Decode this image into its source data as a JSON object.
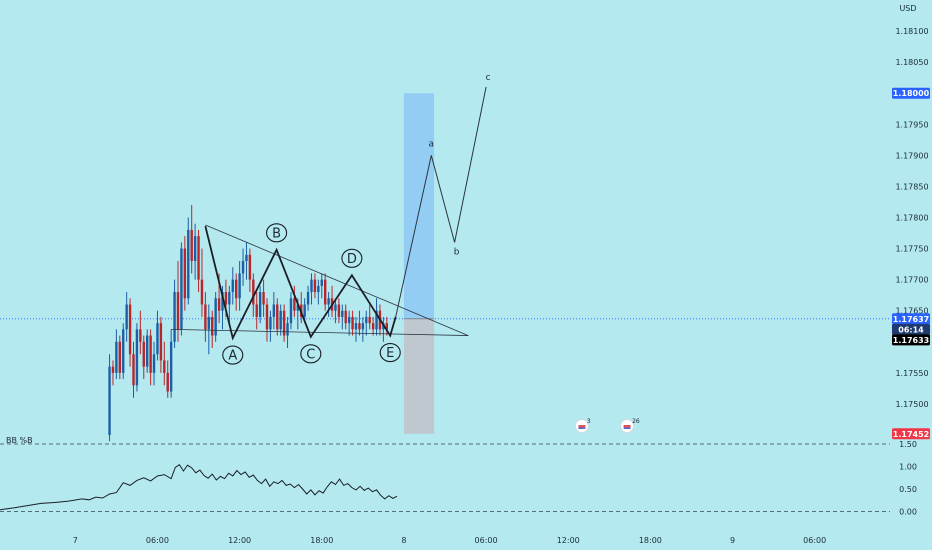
{
  "chart_data": [
    {
      "type": "candlestick",
      "currency": "USD",
      "y_ticks": [
        "1.18100",
        "1.18050",
        "1.18000",
        "1.17950",
        "1.17900",
        "1.17850",
        "1.17800",
        "1.17750",
        "1.17700",
        "1.17650",
        "1.17600",
        "1.17550",
        "1.17500"
      ],
      "y_tick_values": [
        1.181,
        1.1805,
        1.18,
        1.1795,
        1.179,
        1.1785,
        1.178,
        1.1775,
        1.177,
        1.1765,
        1.176,
        1.1755,
        1.175
      ],
      "ylim": [
        1.1745,
        1.1815
      ],
      "x_ticks": [
        "7",
        "06:00",
        "12:00",
        "18:00",
        "8",
        "06:00",
        "12:00",
        "18:00",
        "9",
        "06:00"
      ],
      "x_tick_hours": [
        0,
        6,
        12,
        18,
        24,
        30,
        36,
        42,
        48,
        54
      ],
      "xlim_hours": [
        -5.5,
        59.5
      ],
      "price_tags": [
        {
          "value": "1.18000",
          "price": 1.18,
          "color": "#2962ff",
          "text_color": "#ffffff"
        },
        {
          "value": "1.17637",
          "price": 1.17637,
          "color": "#2962ff",
          "text_color": "#ffffff"
        },
        {
          "value": "06:14",
          "price": 1.1762,
          "color": "#1e3a6e",
          "text_color": "#ffffff"
        },
        {
          "value": "1.17633",
          "price": 1.17603,
          "color": "#000000",
          "text_color": "#ffffff"
        },
        {
          "value": "1.17452",
          "price": 1.17452,
          "color": "#f23645",
          "text_color": "#ffffff"
        }
      ],
      "current_price": 1.17637,
      "candles_ohlc": [
        [
          2.5,
          1.1745,
          1.1758,
          1.1744,
          1.1756
        ],
        [
          2.75,
          1.1756,
          1.1757,
          1.1753,
          1.1755
        ],
        [
          3.0,
          1.1755,
          1.1762,
          1.1754,
          1.176
        ],
        [
          3.25,
          1.176,
          1.1761,
          1.1754,
          1.1755
        ],
        [
          3.5,
          1.1755,
          1.1763,
          1.1754,
          1.1762
        ],
        [
          3.75,
          1.1762,
          1.1768,
          1.176,
          1.1766
        ],
        [
          4.0,
          1.1766,
          1.1767,
          1.1756,
          1.1758
        ],
        [
          4.25,
          1.1758,
          1.176,
          1.1751,
          1.1753
        ],
        [
          4.5,
          1.1753,
          1.1763,
          1.1752,
          1.1762
        ],
        [
          4.75,
          1.1762,
          1.1765,
          1.1758,
          1.176
        ],
        [
          5.0,
          1.176,
          1.1761,
          1.1754,
          1.1756
        ],
        [
          5.25,
          1.1756,
          1.1762,
          1.1755,
          1.1761
        ],
        [
          5.5,
          1.1761,
          1.1762,
          1.1753,
          1.1755
        ],
        [
          5.75,
          1.1755,
          1.176,
          1.1753,
          1.1758
        ],
        [
          6.0,
          1.1758,
          1.1765,
          1.1757,
          1.1763
        ],
        [
          6.25,
          1.1763,
          1.1764,
          1.1755,
          1.1757
        ],
        [
          6.5,
          1.1757,
          1.176,
          1.1753,
          1.1755
        ],
        [
          6.75,
          1.1755,
          1.1757,
          1.1751,
          1.1752
        ],
        [
          7.0,
          1.1752,
          1.1762,
          1.1751,
          1.176
        ],
        [
          7.25,
          1.176,
          1.177,
          1.1759,
          1.1768
        ],
        [
          7.5,
          1.1768,
          1.1773,
          1.176,
          1.1762
        ],
        [
          7.75,
          1.1762,
          1.1776,
          1.1761,
          1.1775
        ],
        [
          8.0,
          1.1775,
          1.1777,
          1.1765,
          1.1767
        ],
        [
          8.25,
          1.1767,
          1.178,
          1.1766,
          1.1778
        ],
        [
          8.5,
          1.1778,
          1.1782,
          1.1771,
          1.1773
        ],
        [
          8.75,
          1.1773,
          1.1779,
          1.177,
          1.1777
        ],
        [
          9.0,
          1.1777,
          1.1778,
          1.1768,
          1.177
        ],
        [
          9.25,
          1.177,
          1.1775,
          1.1764,
          1.1766
        ],
        [
          9.5,
          1.1766,
          1.1768,
          1.176,
          1.1762
        ],
        [
          9.75,
          1.1762,
          1.1766,
          1.1758,
          1.1764
        ],
        [
          10.0,
          1.1764,
          1.1765,
          1.1759,
          1.1761
        ],
        [
          10.25,
          1.1761,
          1.1768,
          1.176,
          1.1767
        ],
        [
          10.5,
          1.1767,
          1.1771,
          1.1763,
          1.1765
        ],
        [
          10.75,
          1.1765,
          1.1769,
          1.1762,
          1.1768
        ],
        [
          11.0,
          1.1768,
          1.177,
          1.1764,
          1.1766
        ],
        [
          11.25,
          1.1766,
          1.1769,
          1.1763,
          1.1768
        ],
        [
          11.5,
          1.1768,
          1.1772,
          1.1766,
          1.177
        ],
        [
          11.75,
          1.177,
          1.1771,
          1.1765,
          1.1767
        ],
        [
          12.0,
          1.1767,
          1.1773,
          1.1765,
          1.1771
        ],
        [
          12.25,
          1.1771,
          1.1775,
          1.1769,
          1.1773
        ],
        [
          12.5,
          1.1773,
          1.1776,
          1.177,
          1.1774
        ],
        [
          12.75,
          1.1774,
          1.1775,
          1.1768,
          1.177
        ],
        [
          13.0,
          1.177,
          1.1771,
          1.1764,
          1.1766
        ],
        [
          13.25,
          1.1766,
          1.1768,
          1.1762,
          1.1764
        ],
        [
          13.5,
          1.1764,
          1.1769,
          1.1763,
          1.1768
        ],
        [
          13.75,
          1.1768,
          1.177,
          1.1764,
          1.1766
        ],
        [
          14.0,
          1.1766,
          1.1767,
          1.176,
          1.1762
        ],
        [
          14.25,
          1.1762,
          1.1765,
          1.176,
          1.1764
        ],
        [
          14.5,
          1.1764,
          1.1768,
          1.1762,
          1.1766
        ],
        [
          14.75,
          1.1766,
          1.1767,
          1.1761,
          1.1762
        ],
        [
          15.0,
          1.1762,
          1.1766,
          1.1761,
          1.1765
        ],
        [
          15.25,
          1.1765,
          1.1766,
          1.176,
          1.1761
        ],
        [
          15.5,
          1.1761,
          1.1764,
          1.1759,
          1.1763
        ],
        [
          15.75,
          1.1763,
          1.1768,
          1.1762,
          1.1767
        ],
        [
          16.0,
          1.1767,
          1.1769,
          1.1764,
          1.1765
        ],
        [
          16.25,
          1.1765,
          1.1767,
          1.1762,
          1.1766
        ],
        [
          16.5,
          1.1766,
          1.1768,
          1.1763,
          1.1764
        ],
        [
          16.75,
          1.1764,
          1.1767,
          1.1763,
          1.1766
        ],
        [
          17.0,
          1.1766,
          1.1769,
          1.1765,
          1.1768
        ],
        [
          17.25,
          1.1768,
          1.1771,
          1.1766,
          1.177
        ],
        [
          17.5,
          1.177,
          1.1771,
          1.1767,
          1.1768
        ],
        [
          17.75,
          1.1768,
          1.177,
          1.1766,
          1.1769
        ],
        [
          18.0,
          1.1769,
          1.1771,
          1.1767,
          1.177
        ],
        [
          18.25,
          1.177,
          1.1771,
          1.1765,
          1.1766
        ],
        [
          18.5,
          1.1766,
          1.1768,
          1.1764,
          1.1767
        ],
        [
          18.75,
          1.1767,
          1.1769,
          1.1764,
          1.1765
        ],
        [
          19.0,
          1.1765,
          1.1767,
          1.1763,
          1.1766
        ],
        [
          19.25,
          1.1766,
          1.1767,
          1.1763,
          1.1764
        ],
        [
          19.5,
          1.1764,
          1.1766,
          1.1762,
          1.1765
        ],
        [
          19.75,
          1.1765,
          1.1766,
          1.1762,
          1.1763
        ],
        [
          20.0,
          1.1763,
          1.1765,
          1.1761,
          1.1764
        ],
        [
          20.25,
          1.1764,
          1.1765,
          1.1761,
          1.1762
        ],
        [
          20.5,
          1.1762,
          1.1764,
          1.176,
          1.1763
        ],
        [
          20.75,
          1.1763,
          1.1765,
          1.1761,
          1.1762
        ],
        [
          21.0,
          1.1762,
          1.1764,
          1.176,
          1.1763
        ],
        [
          21.25,
          1.1763,
          1.1765,
          1.1761,
          1.1764
        ],
        [
          21.5,
          1.1764,
          1.1766,
          1.1762,
          1.1763
        ],
        [
          21.75,
          1.1763,
          1.1764,
          1.1761,
          1.1762
        ],
        [
          22.0,
          1.1762,
          1.1767,
          1.1761,
          1.1765
        ],
        [
          22.25,
          1.1765,
          1.1766,
          1.1761,
          1.1762
        ],
        [
          22.5,
          1.1762,
          1.1764,
          1.176,
          1.1763
        ],
        [
          22.75,
          1.1763,
          1.1764,
          1.1761,
          1.1762
        ]
      ],
      "elliott_waves": {
        "points": [
          {
            "label": "A",
            "hour": 11.5,
            "price": 1.17606
          },
          {
            "label": "B",
            "hour": 14.7,
            "price": 1.17748
          },
          {
            "label": "C",
            "hour": 17.2,
            "price": 1.17608
          },
          {
            "label": "D",
            "hour": 20.2,
            "price": 1.17707
          },
          {
            "label": "E",
            "hour": 23.0,
            "price": 1.1761
          }
        ],
        "path": [
          {
            "hour": 9.5,
            "price": 1.17786
          },
          {
            "hour": 11.5,
            "price": 1.17606
          },
          {
            "hour": 14.7,
            "price": 1.17748
          },
          {
            "hour": 17.2,
            "price": 1.17608
          },
          {
            "hour": 20.2,
            "price": 1.17707
          },
          {
            "hour": 23.0,
            "price": 1.1761
          },
          {
            "hour": 23.4,
            "price": 1.1764
          }
        ]
      },
      "triangle_lines": [
        {
          "from": {
            "hour": 9.5,
            "price": 1.17788
          },
          "to": {
            "hour": 28.7,
            "price": 1.1761
          }
        },
        {
          "from": {
            "hour": 7.0,
            "price": 1.1762
          },
          "to": {
            "hour": 28.7,
            "price": 1.1761
          }
        }
      ],
      "projection": {
        "labels": [
          "a",
          "b",
          "c"
        ],
        "points": [
          {
            "hour": 23.4,
            "price": 1.1764
          },
          {
            "hour": 26.0,
            "price": 1.179
          },
          {
            "hour": 27.7,
            "price": 1.1776
          },
          {
            "hour": 30.0,
            "price": 1.1801
          }
        ]
      },
      "target_box": {
        "hour_start": 24.0,
        "hour_end": 26.2,
        "entry": 1.17637,
        "target": 1.18,
        "stop": 1.17452
      },
      "indicator": {
        "name": "BB %B",
        "y_ticks": [
          "1.50",
          "1.00",
          "0.50",
          "0.00"
        ],
        "y_tick_values": [
          1.5,
          1.0,
          0.5,
          0.0
        ],
        "levels": [
          1.5,
          0.0
        ],
        "ylim": [
          -0.3,
          1.5
        ],
        "values": [
          [
            -5.5,
            0.04
          ],
          [
            -4.5,
            0.08
          ],
          [
            -3.5,
            0.13
          ],
          [
            -2.5,
            0.18
          ],
          [
            -1.5,
            0.2
          ],
          [
            -0.5,
            0.23
          ],
          [
            0.5,
            0.28
          ],
          [
            1.0,
            0.26
          ],
          [
            1.5,
            0.32
          ],
          [
            2.0,
            0.3
          ],
          [
            2.5,
            0.39
          ],
          [
            3.0,
            0.42
          ],
          [
            3.5,
            0.64
          ],
          [
            4.0,
            0.58
          ],
          [
            4.5,
            0.69
          ],
          [
            5.0,
            0.75
          ],
          [
            5.5,
            0.68
          ],
          [
            6.0,
            0.79
          ],
          [
            6.5,
            0.82
          ],
          [
            7.0,
            0.73
          ],
          [
            7.3,
            0.98
          ],
          [
            7.6,
            1.04
          ],
          [
            7.9,
            0.9
          ],
          [
            8.2,
            1.03
          ],
          [
            8.5,
            0.97
          ],
          [
            8.8,
            0.86
          ],
          [
            9.1,
            0.92
          ],
          [
            9.4,
            0.8
          ],
          [
            9.7,
            0.74
          ],
          [
            10.0,
            0.83
          ],
          [
            10.3,
            0.7
          ],
          [
            10.6,
            0.78
          ],
          [
            10.9,
            0.73
          ],
          [
            11.2,
            0.85
          ],
          [
            11.5,
            0.79
          ],
          [
            11.8,
            0.91
          ],
          [
            12.1,
            0.82
          ],
          [
            12.4,
            0.88
          ],
          [
            12.7,
            0.76
          ],
          [
            13.0,
            0.81
          ],
          [
            13.3,
            0.69
          ],
          [
            13.6,
            0.62
          ],
          [
            13.9,
            0.72
          ],
          [
            14.2,
            0.56
          ],
          [
            14.5,
            0.66
          ],
          [
            14.8,
            0.62
          ],
          [
            15.1,
            0.69
          ],
          [
            15.4,
            0.58
          ],
          [
            15.7,
            0.61
          ],
          [
            16.0,
            0.53
          ],
          [
            16.3,
            0.6
          ],
          [
            16.6,
            0.5
          ],
          [
            16.9,
            0.39
          ],
          [
            17.2,
            0.48
          ],
          [
            17.5,
            0.37
          ],
          [
            17.8,
            0.46
          ],
          [
            18.1,
            0.41
          ],
          [
            18.4,
            0.55
          ],
          [
            18.7,
            0.66
          ],
          [
            19.0,
            0.6
          ],
          [
            19.3,
            0.72
          ],
          [
            19.6,
            0.58
          ],
          [
            19.9,
            0.62
          ],
          [
            20.2,
            0.53
          ],
          [
            20.5,
            0.48
          ],
          [
            20.8,
            0.56
          ],
          [
            21.1,
            0.47
          ],
          [
            21.4,
            0.52
          ],
          [
            21.7,
            0.44
          ],
          [
            22.0,
            0.48
          ],
          [
            22.3,
            0.36
          ],
          [
            22.6,
            0.28
          ],
          [
            22.9,
            0.35
          ],
          [
            23.2,
            0.29
          ],
          [
            23.5,
            0.34
          ]
        ]
      },
      "event_markers": [
        {
          "hour": 37.0,
          "count": "3",
          "icon": "economic-event-icon"
        },
        {
          "hour": 40.3,
          "count": "26",
          "icon": "economic-event-icon"
        }
      ]
    }
  ]
}
